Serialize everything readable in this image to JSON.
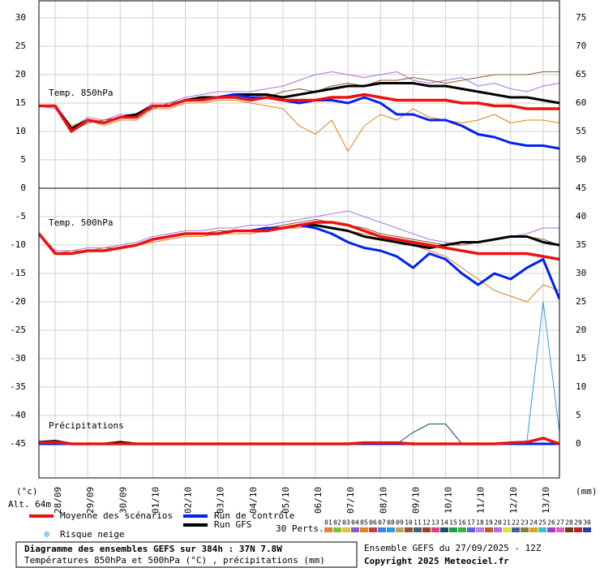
{
  "chart_data": [
    {
      "type": "line",
      "title": "Temp. 850hPa",
      "categories": [
        null,
        "28/09",
        null,
        "29/09",
        null,
        "30/09",
        null,
        "01/10",
        null,
        "02/10",
        null,
        "03/10",
        null,
        "04/10",
        null,
        "05/10",
        null,
        "06/10",
        null,
        "07/10",
        null,
        "08/10",
        null,
        "09/10",
        null,
        "10/10",
        null,
        "11/10",
        null,
        "12/10",
        null,
        "13/10",
        null
      ],
      "ylim": [
        0,
        33
      ],
      "yticks": [
        0,
        5,
        10,
        15,
        20,
        25,
        30
      ],
      "y2lim": [
        45,
        78
      ],
      "y2ticks": [
        50,
        55,
        60,
        65,
        70,
        75
      ],
      "grid": true,
      "series": [
        {
          "color": "#e08020",
          "width": 1,
          "values": [
            14.5,
            14.5,
            11,
            12,
            11,
            12,
            12,
            14,
            14,
            15,
            15,
            15.5,
            15.5,
            15,
            14.5,
            14,
            11,
            9.5,
            12,
            6.5,
            11,
            13,
            12,
            14,
            12.5,
            12,
            11.5,
            12,
            13,
            11.5,
            12,
            12,
            11.5
          ]
        },
        {
          "color": "#b070e0",
          "width": 1,
          "values": [
            14.5,
            14,
            10.5,
            12.5,
            12,
            13,
            13,
            15,
            15,
            16,
            16.5,
            17,
            17,
            17,
            17.5,
            18,
            19,
            20,
            20.5,
            20,
            19.5,
            20,
            20.5,
            19,
            18.5,
            19,
            19.5,
            18,
            18.5,
            17.5,
            17,
            18,
            18.5
          ]
        },
        {
          "color": "#8b5a2b",
          "width": 1,
          "values": [
            14.5,
            14.5,
            10,
            11.5,
            12,
            12.5,
            13,
            14,
            15,
            15.5,
            16,
            16,
            16.5,
            16,
            16,
            17,
            17.5,
            17,
            18,
            18.5,
            18,
            19,
            19,
            19.5,
            19,
            18.5,
            19,
            19.5,
            20,
            20,
            20,
            20.5,
            20.5
          ]
        },
        {
          "name": "Run GFS",
          "color": "#000000",
          "width": 3,
          "values": [
            14.5,
            14.5,
            10.5,
            12,
            11.5,
            12.5,
            13,
            14.5,
            14.5,
            15.5,
            16,
            16,
            16.5,
            16.5,
            16.5,
            16,
            16.5,
            17,
            17.5,
            18,
            18,
            18.5,
            18.5,
            18.5,
            18,
            18,
            17.5,
            17,
            16.5,
            16,
            16,
            15.5,
            15
          ]
        },
        {
          "name": "Run de contrôle",
          "color": "#0022ee",
          "width": 3,
          "values": [
            14.5,
            14.5,
            10,
            12,
            11.5,
            12.5,
            12.5,
            14.5,
            14.5,
            15.5,
            15.5,
            16,
            16.5,
            16,
            16,
            15.5,
            15,
            15.5,
            15.5,
            15,
            16,
            15,
            13,
            13,
            12,
            12,
            11,
            9.5,
            9,
            8,
            7.5,
            7.5,
            7
          ]
        },
        {
          "name": "Moyenne des scénarios",
          "color": "#ee1111",
          "width": 3.5,
          "values": [
            14.5,
            14.5,
            10,
            12,
            11.5,
            12.5,
            12.5,
            14.5,
            14.5,
            15.5,
            15.5,
            16,
            16,
            15.5,
            16,
            15.5,
            15.5,
            15.5,
            16,
            16,
            16.5,
            16,
            15.5,
            15.5,
            15.5,
            15.5,
            15,
            15,
            14.5,
            14.5,
            14,
            14,
            14
          ]
        }
      ]
    },
    {
      "type": "line",
      "title": "Temp. 500hPa",
      "ylim": [
        -51,
        0
      ],
      "yticks": [
        -45,
        -40,
        -35,
        -30,
        -25,
        -20,
        -15,
        -10,
        -5
      ],
      "grid": true,
      "series": [
        {
          "color": "#e08020",
          "width": 1,
          "values": [
            -8,
            -11.5,
            -11,
            -11,
            -10.5,
            -10.5,
            -10,
            -9.5,
            -9,
            -8.5,
            -8.5,
            -8,
            -8,
            -8,
            -7.5,
            -7,
            -7,
            -6.5,
            -7,
            -7.5,
            -8,
            -8.5,
            -9.5,
            -10,
            -11,
            -12,
            -14,
            -16,
            -18,
            -19,
            -20,
            -17,
            -18
          ]
        },
        {
          "color": "#b070e0",
          "width": 1,
          "values": [
            -8,
            -11,
            -11,
            -10.5,
            -10.5,
            -10,
            -9.5,
            -8.5,
            -8,
            -7.5,
            -7.5,
            -7,
            -7,
            -6.5,
            -6.5,
            -6,
            -5.5,
            -5,
            -4.5,
            -4,
            -5,
            -6,
            -7,
            -8,
            -9,
            -9.5,
            -10,
            -9.5,
            -9,
            -8.5,
            -8,
            -7,
            -7
          ]
        },
        {
          "color": "#8b5a2b",
          "width": 1,
          "values": [
            -8,
            -11.5,
            -11.5,
            -11,
            -11,
            -10.5,
            -10,
            -9,
            -8.5,
            -8,
            -8,
            -7.5,
            -7.5,
            -7.5,
            -7,
            -6.5,
            -6,
            -5.5,
            -6,
            -6.5,
            -7,
            -8,
            -8.5,
            -9,
            -9.5,
            -10,
            -10,
            -9.5,
            -9,
            -8.5,
            -8.5,
            -9,
            -10
          ]
        },
        {
          "color": "#000000",
          "width": 3,
          "values": [
            -8,
            -11.5,
            -11.5,
            -11,
            -11,
            -10.5,
            -10,
            -9,
            -8.5,
            -8,
            -8,
            -8,
            -7.5,
            -7.5,
            -7,
            -7,
            -6.5,
            -6.5,
            -7,
            -7.5,
            -8.5,
            -9,
            -9.5,
            -10,
            -10.5,
            -10,
            -9.5,
            -9.5,
            -9,
            -8.5,
            -8.5,
            -9.5,
            -10
          ]
        },
        {
          "color": "#0022ee",
          "width": 3,
          "values": [
            -8,
            -11.5,
            -11.5,
            -11,
            -11,
            -10.5,
            -10,
            -9,
            -8.5,
            -8,
            -8,
            -8,
            -7.5,
            -7.5,
            -7,
            -7,
            -6.5,
            -7,
            -8,
            -9.5,
            -10.5,
            -11,
            -12,
            -14,
            -11.5,
            -12.5,
            -15,
            -17,
            -15,
            -16,
            -14,
            -12.5,
            -19.5
          ]
        },
        {
          "color": "#ee1111",
          "width": 3.5,
          "values": [
            -8,
            -11.5,
            -11.5,
            -11,
            -11,
            -10.5,
            -10,
            -9,
            -8.5,
            -8,
            -8,
            -8,
            -7.5,
            -7.5,
            -7.5,
            -7,
            -6.5,
            -6,
            -6,
            -6.5,
            -7.5,
            -8.5,
            -9,
            -9.5,
            -10,
            -10.5,
            -11,
            -11.5,
            -11.5,
            -11.5,
            -11.5,
            -12,
            -12.5
          ]
        }
      ]
    },
    {
      "type": "line",
      "title": "Précipitations",
      "ylim": [
        -6,
        45
      ],
      "yticks": [
        0,
        5,
        10,
        15,
        20,
        25,
        30,
        35,
        40,
        45
      ],
      "yaxis_side": "right",
      "series": [
        {
          "color": "#1a4d66",
          "width": 1,
          "values": [
            0,
            0,
            0,
            0,
            0,
            0,
            0,
            0,
            0,
            0,
            0,
            0,
            0,
            0,
            0,
            0,
            0,
            0,
            0,
            0,
            0,
            0,
            0,
            2,
            3.5,
            3.5,
            0,
            0,
            0,
            0,
            0,
            0,
            0
          ]
        },
        {
          "color": "#2b9be0",
          "width": 1,
          "values": [
            0,
            0,
            0,
            0,
            0,
            0,
            0,
            0,
            0,
            0,
            0,
            0,
            0,
            0,
            0,
            0,
            0,
            0,
            0,
            0,
            0,
            0,
            0,
            0,
            0,
            0,
            0,
            0,
            0,
            0,
            0.5,
            25,
            2
          ]
        },
        {
          "color": "#000000",
          "width": 3,
          "values": [
            0.3,
            0.5,
            0,
            0,
            0,
            0.3,
            0,
            0,
            0,
            0,
            0,
            0,
            0,
            0,
            0,
            0,
            0,
            0,
            0,
            0,
            0,
            0,
            0,
            0,
            0,
            0,
            0,
            0,
            0,
            0,
            0,
            0,
            0
          ]
        },
        {
          "color": "#0022ee",
          "width": 3,
          "values": [
            0,
            0,
            0,
            0,
            0,
            0,
            0,
            0,
            0,
            0,
            0,
            0,
            0,
            0,
            0,
            0,
            0,
            0,
            0,
            0,
            0,
            0,
            0,
            0,
            0,
            0,
            0,
            0,
            0,
            0,
            0,
            0,
            0
          ]
        },
        {
          "color": "#ee1111",
          "width": 3.5,
          "values": [
            0.2,
            0.3,
            0,
            0,
            0,
            0,
            0,
            0,
            0,
            0,
            0,
            0,
            0,
            0,
            0,
            0,
            0,
            0,
            0,
            0,
            0.2,
            0.2,
            0.2,
            0,
            0,
            0,
            0,
            0,
            0,
            0.2,
            0.3,
            1,
            0
          ]
        }
      ]
    }
  ],
  "y_unit_left": "(°c)",
  "y_unit_right": "(mm)",
  "altitude": "Alt. 64m",
  "snow_risk": "Risque neige",
  "perts_label": "30 Perts.",
  "members": [
    {
      "label": "01",
      "color": "#e08040"
    },
    {
      "label": "02",
      "color": "#80c040"
    },
    {
      "label": "03",
      "color": "#e0c040"
    },
    {
      "label": "04",
      "color": "#8060c0"
    },
    {
      "label": "05",
      "color": "#e08020"
    },
    {
      "label": "06",
      "color": "#c04040"
    },
    {
      "label": "07",
      "color": "#4080e0"
    },
    {
      "label": "08",
      "color": "#2b9be0"
    },
    {
      "label": "09",
      "color": "#c0a060"
    },
    {
      "label": "10",
      "color": "#8b5a2b"
    },
    {
      "label": "11",
      "color": "#406080"
    },
    {
      "label": "12",
      "color": "#a04020"
    },
    {
      "label": "13",
      "color": "#e04080"
    },
    {
      "label": "14",
      "color": "#1a4d66"
    },
    {
      "label": "15",
      "color": "#20a040"
    },
    {
      "label": "16",
      "color": "#40b040"
    },
    {
      "label": "17",
      "color": "#6060e0"
    },
    {
      "label": "18",
      "color": "#c080e0"
    },
    {
      "label": "19",
      "color": "#c06020"
    },
    {
      "label": "20",
      "color": "#b070e0"
    },
    {
      "label": "21",
      "color": "#e0e040"
    },
    {
      "label": "22",
      "color": "#4060a0"
    },
    {
      "label": "23",
      "color": "#808040"
    },
    {
      "label": "24",
      "color": "#e0a020"
    },
    {
      "label": "25",
      "color": "#40c0c0"
    },
    {
      "label": "26",
      "color": "#a040c0"
    },
    {
      "label": "27",
      "color": "#e060c0"
    },
    {
      "label": "28",
      "color": "#604020"
    },
    {
      "label": "29",
      "color": "#c02020"
    },
    {
      "label": "30",
      "color": "#2040a0"
    }
  ],
  "footer": {
    "title": "Diagramme des ensembles GEFS sur 384h : 37N 7.8W",
    "subtitle": "Températures 850hPa et 500hPa (°C) , précipitations (mm)",
    "run": "Ensemble GEFS du 27/09/2025 - 12Z",
    "copyright": "Copyright 2025 Meteociel.fr"
  }
}
